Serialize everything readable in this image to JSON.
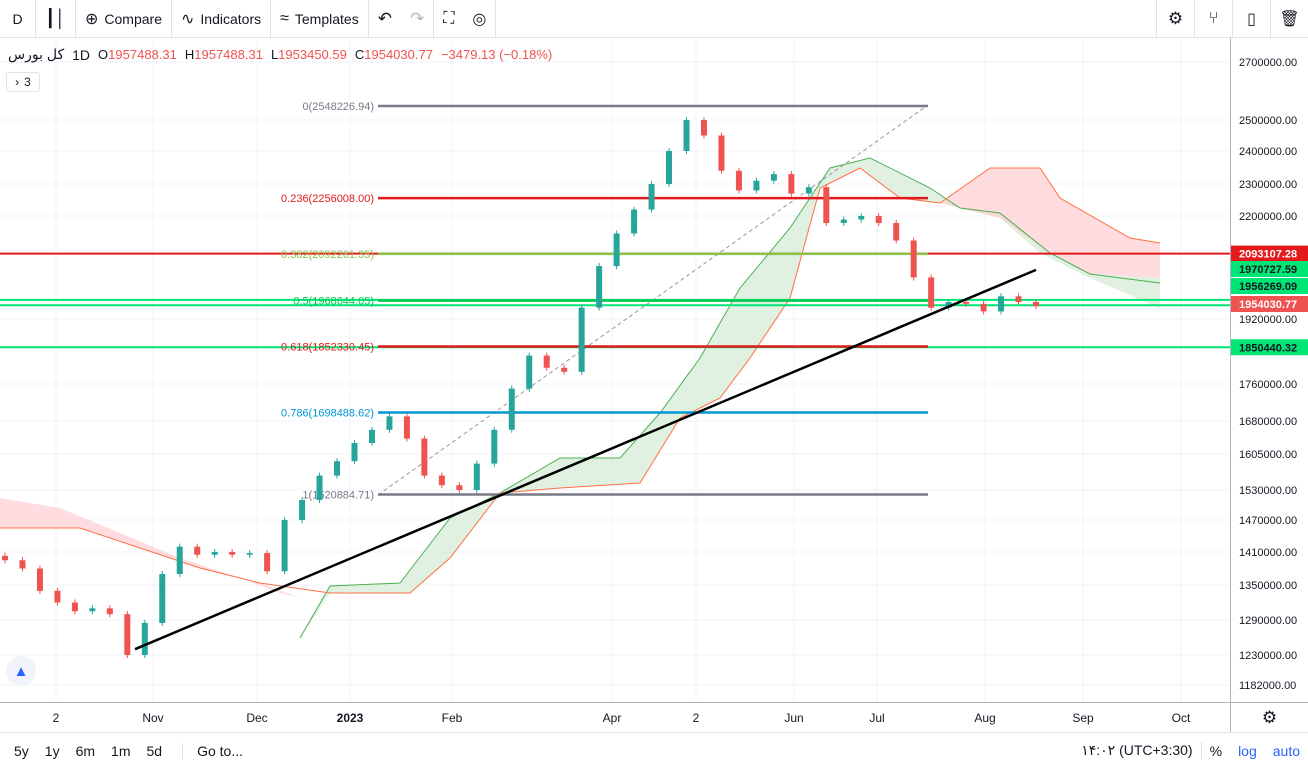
{
  "toolbar": {
    "symbol": "D",
    "compare": "Compare",
    "indicators": "Indicators",
    "templates": "Templates"
  },
  "legend": {
    "symbol": "کل بورس",
    "timeframe": "1D",
    "open": "1957488.31",
    "high": "1957488.31",
    "low": "1953450.59",
    "close": "1954030.77",
    "change": "−3479.13 (−0.18%)",
    "indicator_count": "3"
  },
  "bottom": {
    "ranges": [
      "5y",
      "1y",
      "6m",
      "1m",
      "5d"
    ],
    "goto": "Go to...",
    "time": "۱۴:۰۲ (UTC+3:30)",
    "percent": "%",
    "log": "log",
    "auto": "auto"
  },
  "chart_data": {
    "type": "candlestick",
    "title": "",
    "price_ticks": [
      2700000,
      2500000,
      2400000,
      2300000,
      2200000,
      2100000,
      1920000,
      1760000,
      1680000,
      1605000,
      1530000,
      1470000,
      1410000,
      1350000,
      1290000,
      1230000,
      1182000
    ],
    "price_tick_labels": [
      "2700000.00",
      "2500000.00",
      "2400000.00",
      "2300000.00",
      "2200000.00",
      "2100000.00",
      "1920000.00",
      "1760000.00",
      "1680000.00",
      "1605000.00",
      "1530000.00",
      "1470000.00",
      "1410000.00",
      "1350000.00",
      "1290000.00",
      "1230000.00",
      "1182000.00"
    ],
    "time_labels": [
      "2",
      "Nov",
      "Dec",
      "2023",
      "Feb",
      "Apr",
      "2",
      "Jun",
      "Jul",
      "Aug",
      "Sep",
      "Oct"
    ],
    "fibonacci": [
      {
        "ratio": "0",
        "price": 2548226.94,
        "label": "0(2548226.94)",
        "color": "#787b86"
      },
      {
        "ratio": "0.236",
        "price": 2256008.0,
        "label": "0.236(2256008.00)",
        "color": "#e31a1c"
      },
      {
        "ratio": "0.382",
        "price": 2092261.35,
        "label": "0.382(2092261.35)",
        "color": "#8bc34a"
      },
      {
        "ratio": "0.5",
        "price": 1968644.05,
        "label": "0.5(1968644.05)",
        "color": "#00c853"
      },
      {
        "ratio": "0.618",
        "price": 1852330.45,
        "label": "0.618(1852330.45)",
        "color": "#e31a1c"
      },
      {
        "ratio": "0.786",
        "price": 1698488.62,
        "label": "0.786(1698488.62)",
        "color": "#0097d6"
      },
      {
        "ratio": "1",
        "price": 1520884.71,
        "label": "1(1520884.71)",
        "color": "#787b86"
      }
    ],
    "horizontal_lines": [
      {
        "price": 2093107.28,
        "label": "2093107.28",
        "color": "#e31a1c"
      },
      {
        "price": 1970727.59,
        "label": "1970727.59",
        "color": "#00e676"
      },
      {
        "price": 1956269.09,
        "label": "1956269.09",
        "color": "#00e676"
      },
      {
        "price": 1850440.32,
        "label": "1850440.32",
        "color": "#00e676"
      }
    ],
    "last_price": {
      "price": 1954030.77,
      "label": "1954030.77",
      "color": "#ef5350"
    },
    "trendline": [
      {
        "date": "2022-10-27",
        "price": 1240000
      },
      {
        "date": "2023-08-13",
        "price": 2050000
      }
    ],
    "closes": [
      1395000,
      1380000,
      1340000,
      1320000,
      1305000,
      1310000,
      1300000,
      1230000,
      1285000,
      1370000,
      1420000,
      1405000,
      1410000,
      1405000,
      1408000,
      1375000,
      1470000,
      1510000,
      1560000,
      1590000,
      1630000,
      1660000,
      1690000,
      1640000,
      1560000,
      1540000,
      1530000,
      1585000,
      1660000,
      1750000,
      1830000,
      1800000,
      1790000,
      1950000,
      2060000,
      2150000,
      2220000,
      2300000,
      2400000,
      2500000,
      2450000,
      2340000,
      2280000,
      2310000,
      2330000,
      2270000,
      2290000,
      2180000,
      2190000,
      2200000,
      2180000,
      2130000,
      2030000,
      1950000,
      1965000,
      1960000,
      1940000,
      1980000,
      1965000,
      1954000
    ],
    "colors": {
      "up": "#26a69a",
      "down": "#ef5350",
      "kumo_up": "#a5d6a7",
      "kumo_down": "#f8bbd0"
    }
  }
}
